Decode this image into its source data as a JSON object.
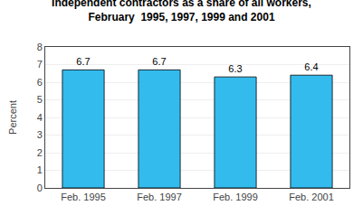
{
  "chart_data": {
    "type": "bar",
    "title": "Independent contractors as a share of all workers,",
    "subtitle": "February  1995, 1997, 1999 and 2001",
    "categories": [
      "Feb. 1995",
      "Feb. 1997",
      "Feb. 1999",
      "Feb. 2001"
    ],
    "values": [
      6.7,
      6.7,
      6.3,
      6.4
    ],
    "color": "#33BBEE",
    "y_label": "Percent",
    "ylim": [
      0,
      8
    ],
    "yticks": [
      0,
      1,
      2,
      3,
      4,
      5,
      6,
      7,
      8
    ],
    "grid": true,
    "data_labels": true
  }
}
